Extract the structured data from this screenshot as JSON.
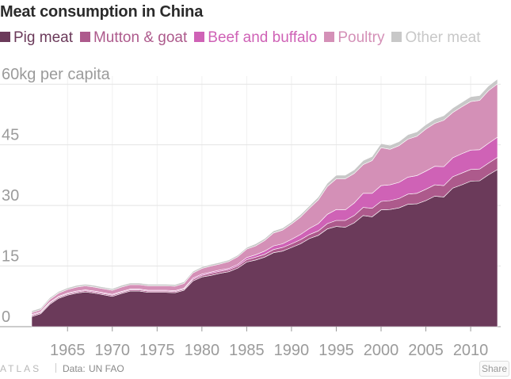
{
  "title": "Meat consumption in China",
  "legend": [
    {
      "label": "Pig meat",
      "color": "#6b3a5a"
    },
    {
      "label": "Mutton & goat",
      "color": "#ad5a8c"
    },
    {
      "label": "Beef and buffalo",
      "color": "#cf62b6"
    },
    {
      "label": "Poultry",
      "color": "#d490b7"
    },
    {
      "label": "Other meat",
      "color": "#c8c8c8"
    }
  ],
  "chart_data": {
    "type": "area",
    "stacked": true,
    "title": "Meat consumption in China",
    "ylabel": "kg per capita",
    "ylim": [
      0,
      62
    ],
    "yticks": [
      0,
      15,
      30,
      45,
      60
    ],
    "ytick_labels": [
      "0",
      "15",
      "30",
      "45",
      "60kg per capita"
    ],
    "xlim": [
      1961,
      2013
    ],
    "xticks": [
      1965,
      1970,
      1975,
      1980,
      1985,
      1990,
      1995,
      2000,
      2005,
      2010
    ],
    "x": [
      1961,
      1962,
      1963,
      1964,
      1965,
      1966,
      1967,
      1968,
      1969,
      1970,
      1971,
      1972,
      1973,
      1974,
      1975,
      1976,
      1977,
      1978,
      1979,
      1980,
      1981,
      1982,
      1983,
      1984,
      1985,
      1986,
      1987,
      1988,
      1989,
      1990,
      1991,
      1992,
      1993,
      1994,
      1995,
      1996,
      1997,
      1998,
      1999,
      2000,
      2001,
      2002,
      2003,
      2004,
      2005,
      2006,
      2007,
      2008,
      2009,
      2010,
      2011,
      2012,
      2013
    ],
    "series": [
      {
        "name": "Pig meat",
        "color": "#6b3a5a",
        "values": [
          2.5,
          3.2,
          5.5,
          7.0,
          7.8,
          8.3,
          8.6,
          8.3,
          7.9,
          7.5,
          8.2,
          8.8,
          8.8,
          8.5,
          8.5,
          8.5,
          8.4,
          9.0,
          11.3,
          12.3,
          12.7,
          13.2,
          13.6,
          14.5,
          16.0,
          16.5,
          17.2,
          18.3,
          18.7,
          19.6,
          20.5,
          21.8,
          22.6,
          24.2,
          24.8,
          24.6,
          25.7,
          27.5,
          27.2,
          28.9,
          29.0,
          29.4,
          30.3,
          30.4,
          31.2,
          32.3,
          32.1,
          34.3,
          35.1,
          36.0,
          36.1,
          37.6,
          38.9
        ]
      },
      {
        "name": "Mutton & goat",
        "color": "#ad5a8c",
        "values": [
          0.3,
          0.3,
          0.3,
          0.3,
          0.3,
          0.3,
          0.3,
          0.3,
          0.3,
          0.3,
          0.3,
          0.3,
          0.3,
          0.3,
          0.3,
          0.3,
          0.3,
          0.3,
          0.4,
          0.4,
          0.5,
          0.5,
          0.5,
          0.5,
          0.6,
          0.7,
          0.7,
          0.8,
          0.9,
          0.9,
          1.0,
          1.0,
          1.1,
          1.3,
          1.5,
          1.7,
          1.8,
          2.0,
          2.1,
          2.1,
          2.2,
          2.3,
          2.5,
          2.6,
          2.8,
          2.8,
          2.8,
          2.8,
          2.9,
          2.9,
          2.9,
          2.9,
          3.0
        ]
      },
      {
        "name": "Beef and buffalo",
        "color": "#cf62b6",
        "values": [
          0.2,
          0.2,
          0.2,
          0.2,
          0.2,
          0.2,
          0.2,
          0.2,
          0.2,
          0.2,
          0.2,
          0.2,
          0.2,
          0.2,
          0.2,
          0.2,
          0.2,
          0.2,
          0.3,
          0.3,
          0.3,
          0.3,
          0.3,
          0.4,
          0.5,
          0.6,
          0.8,
          0.9,
          0.9,
          1.1,
          1.3,
          1.5,
          1.8,
          2.3,
          2.7,
          2.6,
          3.1,
          3.5,
          3.7,
          3.9,
          3.9,
          4.0,
          4.2,
          4.4,
          4.5,
          4.6,
          4.7,
          4.7,
          4.8,
          4.8,
          4.8,
          4.9,
          5.0
        ]
      },
      {
        "name": "Poultry",
        "color": "#d490b7",
        "values": [
          0.5,
          0.5,
          0.7,
          0.8,
          0.9,
          1.0,
          1.0,
          1.0,
          1.0,
          1.0,
          1.1,
          1.1,
          1.1,
          1.1,
          1.1,
          1.1,
          1.1,
          1.2,
          1.3,
          1.4,
          1.5,
          1.5,
          1.7,
          1.9,
          2.1,
          2.2,
          2.6,
          3.2,
          3.4,
          3.8,
          4.3,
          5.0,
          5.9,
          6.9,
          7.6,
          7.7,
          7.3,
          7.1,
          8.1,
          9.4,
          8.8,
          9.1,
          9.4,
          9.7,
          10.4,
          10.6,
          11.5,
          11.2,
          11.6,
          12.0,
          12.2,
          13.0,
          13.2
        ]
      },
      {
        "name": "Other meat",
        "color": "#c8c8c8",
        "values": [
          0.4,
          0.4,
          0.4,
          0.4,
          0.4,
          0.4,
          0.4,
          0.4,
          0.4,
          0.4,
          0.4,
          0.4,
          0.4,
          0.4,
          0.4,
          0.4,
          0.4,
          0.4,
          0.4,
          0.4,
          0.4,
          0.4,
          0.4,
          0.4,
          0.4,
          0.5,
          0.5,
          0.5,
          0.5,
          0.5,
          0.6,
          0.6,
          0.7,
          0.8,
          0.9,
          0.9,
          0.9,
          1.0,
          1.0,
          1.0,
          1.0,
          1.0,
          1.1,
          1.1,
          1.1,
          1.1,
          1.1,
          1.1,
          1.1,
          1.2,
          1.2,
          1.2,
          1.2
        ]
      }
    ],
    "grid": true,
    "legend_position": "top"
  },
  "footer": {
    "brand": "ATLAS",
    "source_label": "Data:",
    "source_value": "UN FAO",
    "share_label": "Share"
  }
}
